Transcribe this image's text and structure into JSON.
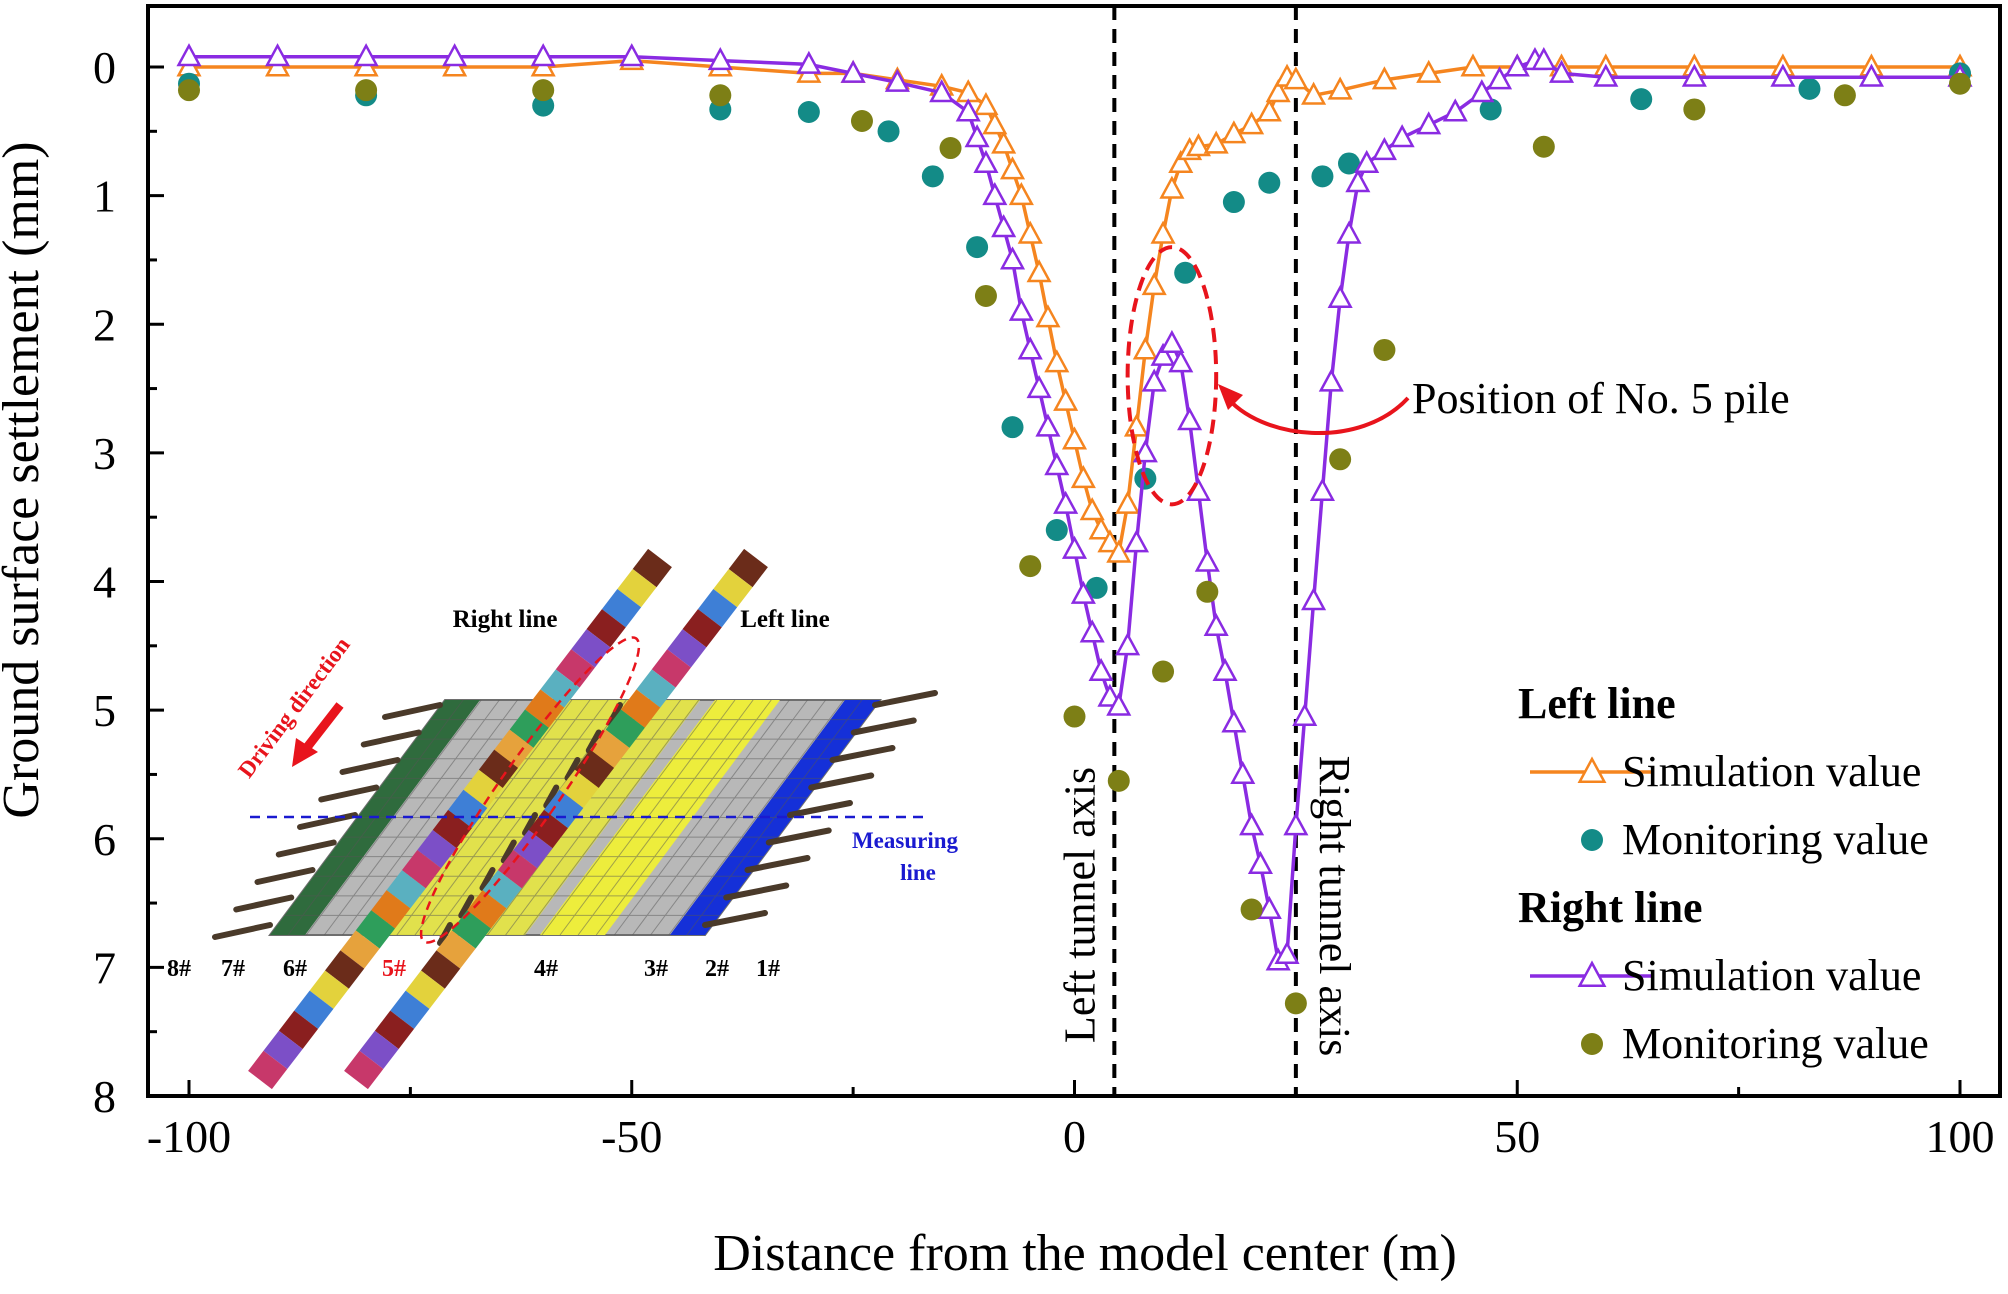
{
  "chart_data": {
    "type": "line",
    "xlabel": "Distance from the model center (m)",
    "ylabel": "Ground surface settlement (mm)",
    "xlim": [
      -105,
      105
    ],
    "ylim": [
      8,
      -0.4
    ],
    "y_inverted": true,
    "xticks": [
      -100,
      -50,
      0,
      50,
      100
    ],
    "yticks": [
      0,
      1,
      2,
      3,
      4,
      5,
      6,
      7,
      8
    ],
    "colors": {
      "left_sim": "#f5851f",
      "left_mon": "#138b87",
      "right_sim": "#8a2be2",
      "right_mon": "#7d7f16",
      "annotation": "#e8141c",
      "axis_line": "#000000"
    },
    "reference_lines": [
      {
        "x": 4.5,
        "label": "Left tunnel axis"
      },
      {
        "x": 25,
        "label": "Right tunnel axis"
      }
    ],
    "annotation": {
      "text": "Position of No. 5 pile",
      "ellipse_center": [
        11,
        2.4
      ],
      "ellipse_radius": [
        5,
        1.0
      ],
      "text_anchor": [
        38,
        2.6
      ]
    },
    "legend": {
      "groups": [
        {
          "heading": "Left line",
          "entries": [
            {
              "label": "Simulation value",
              "series": "left_sim"
            },
            {
              "label": "Monitoring value",
              "series": "left_mon"
            }
          ]
        },
        {
          "heading": "Right line",
          "entries": [
            {
              "label": " Simulation value",
              "series": "right_sim"
            },
            {
              "label": "Monitoring value",
              "series": "right_mon"
            }
          ]
        }
      ]
    },
    "series": [
      {
        "key": "left_sim",
        "name": "Left line Simulation value",
        "style": "line-triangle",
        "points": [
          [
            -100,
            0
          ],
          [
            -90,
            0
          ],
          [
            -80,
            0
          ],
          [
            -70,
            0
          ],
          [
            -60,
            0
          ],
          [
            -50,
            -0.05
          ],
          [
            -40,
            0
          ],
          [
            -30,
            0.05
          ],
          [
            -25,
            0.05
          ],
          [
            -20,
            0.1
          ],
          [
            -15,
            0.15
          ],
          [
            -12,
            0.2
          ],
          [
            -10,
            0.3
          ],
          [
            -9,
            0.45
          ],
          [
            -8,
            0.6
          ],
          [
            -7,
            0.8
          ],
          [
            -6,
            1.0
          ],
          [
            -5,
            1.3
          ],
          [
            -4,
            1.6
          ],
          [
            -3,
            1.95
          ],
          [
            -2,
            2.3
          ],
          [
            -1,
            2.6
          ],
          [
            0,
            2.9
          ],
          [
            1,
            3.2
          ],
          [
            2,
            3.45
          ],
          [
            3,
            3.6
          ],
          [
            4,
            3.7
          ],
          [
            5,
            3.78
          ],
          [
            6,
            3.4
          ],
          [
            7,
            2.8
          ],
          [
            8,
            2.2
          ],
          [
            9,
            1.7
          ],
          [
            10,
            1.3
          ],
          [
            11,
            0.95
          ],
          [
            12,
            0.75
          ],
          [
            13,
            0.65
          ],
          [
            14,
            0.62
          ],
          [
            16,
            0.6
          ],
          [
            18,
            0.52
          ],
          [
            20,
            0.45
          ],
          [
            22,
            0.35
          ],
          [
            23,
            0.2
          ],
          [
            24,
            0.08
          ],
          [
            25,
            0.1
          ],
          [
            27,
            0.22
          ],
          [
            30,
            0.18
          ],
          [
            35,
            0.1
          ],
          [
            40,
            0.05
          ],
          [
            45,
            0
          ],
          [
            50,
            0
          ],
          [
            55,
            0
          ],
          [
            60,
            0
          ],
          [
            70,
            0
          ],
          [
            80,
            0
          ],
          [
            90,
            0
          ],
          [
            100,
            0
          ]
        ]
      },
      {
        "key": "left_mon",
        "name": "Left line Monitoring value",
        "style": "dot",
        "points": [
          [
            -100,
            0.13
          ],
          [
            -80,
            0.22
          ],
          [
            -60,
            0.3
          ],
          [
            -40,
            0.33
          ],
          [
            -30,
            0.35
          ],
          [
            -21,
            0.5
          ],
          [
            -16,
            0.85
          ],
          [
            -11,
            1.4
          ],
          [
            -7,
            2.8
          ],
          [
            -2,
            3.6
          ],
          [
            2.5,
            4.05
          ],
          [
            8,
            3.2
          ],
          [
            12.5,
            1.6
          ],
          [
            18,
            1.05
          ],
          [
            22,
            0.9
          ],
          [
            28,
            0.85
          ],
          [
            31,
            0.75
          ],
          [
            47,
            0.33
          ],
          [
            64,
            0.25
          ],
          [
            83,
            0.17
          ],
          [
            100,
            0.05
          ]
        ]
      },
      {
        "key": "right_sim",
        "name": "Right line Simulation value",
        "style": "line-triangle",
        "points": [
          [
            -100,
            -0.08
          ],
          [
            -90,
            -0.08
          ],
          [
            -80,
            -0.08
          ],
          [
            -70,
            -0.08
          ],
          [
            -60,
            -0.08
          ],
          [
            -50,
            -0.08
          ],
          [
            -40,
            -0.05
          ],
          [
            -30,
            -0.02
          ],
          [
            -25,
            0.05
          ],
          [
            -20,
            0.12
          ],
          [
            -15,
            0.2
          ],
          [
            -12,
            0.35
          ],
          [
            -11,
            0.55
          ],
          [
            -10,
            0.75
          ],
          [
            -9,
            1.0
          ],
          [
            -8,
            1.25
          ],
          [
            -7,
            1.5
          ],
          [
            -6,
            1.9
          ],
          [
            -5,
            2.2
          ],
          [
            -4,
            2.5
          ],
          [
            -3,
            2.8
          ],
          [
            -2,
            3.1
          ],
          [
            -1,
            3.4
          ],
          [
            0,
            3.75
          ],
          [
            1,
            4.1
          ],
          [
            2,
            4.4
          ],
          [
            3,
            4.7
          ],
          [
            4,
            4.9
          ],
          [
            5,
            4.97
          ],
          [
            6,
            4.5
          ],
          [
            7,
            3.7
          ],
          [
            8,
            3.0
          ],
          [
            9,
            2.45
          ],
          [
            10,
            2.25
          ],
          [
            11,
            2.15
          ],
          [
            12,
            2.3
          ],
          [
            13,
            2.75
          ],
          [
            14,
            3.3
          ],
          [
            15,
            3.85
          ],
          [
            16,
            4.35
          ],
          [
            17,
            4.7
          ],
          [
            18,
            5.1
          ],
          [
            19,
            5.5
          ],
          [
            20,
            5.9
          ],
          [
            21,
            6.2
          ],
          [
            22,
            6.55
          ],
          [
            23,
            6.95
          ],
          [
            24,
            6.9
          ],
          [
            25,
            5.9
          ],
          [
            26,
            5.05
          ],
          [
            27,
            4.15
          ],
          [
            28,
            3.3
          ],
          [
            29,
            2.45
          ],
          [
            30,
            1.8
          ],
          [
            31,
            1.3
          ],
          [
            32,
            0.9
          ],
          [
            33,
            0.75
          ],
          [
            35,
            0.65
          ],
          [
            37,
            0.55
          ],
          [
            40,
            0.45
          ],
          [
            43,
            0.35
          ],
          [
            46,
            0.2
          ],
          [
            48,
            0.1
          ],
          [
            50,
            0
          ],
          [
            52,
            -0.05
          ],
          [
            53,
            -0.05
          ],
          [
            55,
            0.05
          ],
          [
            60,
            0.08
          ],
          [
            70,
            0.08
          ],
          [
            80,
            0.08
          ],
          [
            90,
            0.08
          ],
          [
            100,
            0.08
          ]
        ]
      },
      {
        "key": "right_mon",
        "name": "Right line Monitoring value",
        "style": "dot",
        "points": [
          [
            -100,
            0.18
          ],
          [
            -80,
            0.18
          ],
          [
            -60,
            0.18
          ],
          [
            -40,
            0.22
          ],
          [
            -24,
            0.42
          ],
          [
            -14,
            0.63
          ],
          [
            -10,
            1.78
          ],
          [
            -5,
            3.88
          ],
          [
            0,
            5.05
          ],
          [
            5,
            5.55
          ],
          [
            10,
            4.7
          ],
          [
            15,
            4.08
          ],
          [
            20,
            6.55
          ],
          [
            25,
            7.28
          ],
          [
            30,
            3.05
          ],
          [
            35,
            2.2
          ],
          [
            53,
            0.62
          ],
          [
            70,
            0.33
          ],
          [
            87,
            0.22
          ],
          [
            100,
            0.13
          ]
        ]
      }
    ]
  },
  "inset": {
    "right_line_label": "Right line",
    "left_line_label": "Left line",
    "driving_direction_label": "Driving direction",
    "measuring_line_label": "Measuring\nline",
    "measuring_line_word1": "Measuring",
    "measuring_line_word2": "line",
    "pile_labels": [
      "8#",
      "7#",
      "6#",
      "5#",
      "4#",
      "3#",
      "2#",
      "1#"
    ]
  }
}
